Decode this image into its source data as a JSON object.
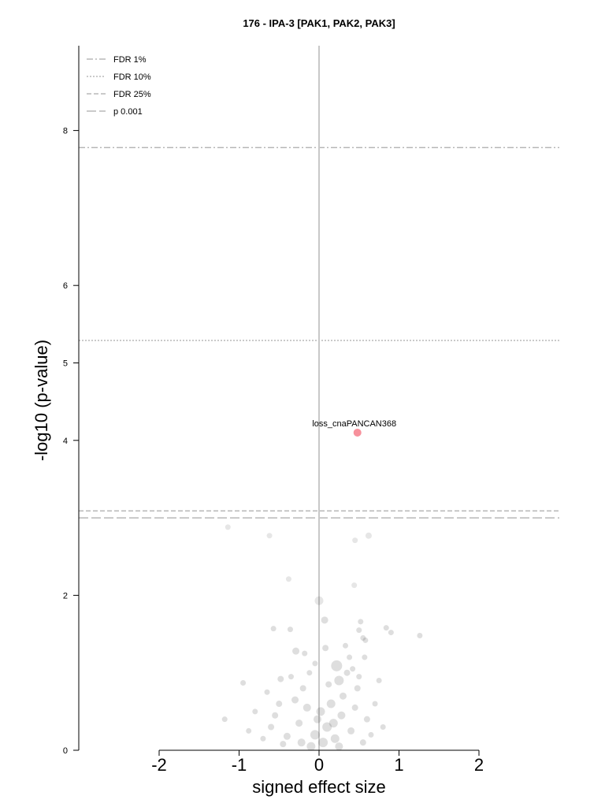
{
  "chart_data": {
    "type": "scatter",
    "title": "176 - IPA-3 [PAK1, PAK2, PAK3]",
    "xlabel": "signed effect size",
    "ylabel": "-log10 (p-value)",
    "x_ticks": [
      "-2",
      "-1",
      "0",
      "1",
      "2"
    ],
    "x_tick_values": [
      -2,
      -1,
      0,
      1,
      2
    ],
    "y_ticks": [
      "0",
      "2",
      "4",
      "5",
      "6",
      "8"
    ],
    "y_tick_values": [
      0,
      2,
      4,
      5,
      6,
      8
    ],
    "xlim": [
      -3.0,
      3.0
    ],
    "ylim": [
      0,
      9.0
    ],
    "grid": false,
    "legend_position": "top-left",
    "thresholds": [
      {
        "name": "FDR 1%",
        "y": 7.78,
        "style": "dashdot"
      },
      {
        "name": "FDR 10%",
        "y": 5.29,
        "style": "dotted"
      },
      {
        "name": "FDR 25%",
        "y": 3.09,
        "style": "dashed"
      },
      {
        "name": "p 0.001",
        "y": 3.0,
        "style": "longdash"
      }
    ],
    "highlight": {
      "label": "loss_cnaPANCAN368",
      "x": 0.48,
      "y": 4.1,
      "color": "#f7919c"
    },
    "colors": {
      "points": "#333333",
      "highlight": "#f7919c",
      "zero_line": "#c8c8c8",
      "threshold": "#aaaaaa"
    },
    "points": [
      [
        -1.14,
        2.88,
        5
      ],
      [
        -0.62,
        2.77,
        5
      ],
      [
        0.45,
        2.71,
        5
      ],
      [
        0.62,
        2.77,
        6
      ],
      [
        -0.38,
        2.21,
        5
      ],
      [
        0.44,
        2.13,
        5
      ],
      [
        0.0,
        1.93,
        9
      ],
      [
        0.07,
        1.68,
        7
      ],
      [
        0.52,
        1.66,
        5
      ],
      [
        0.84,
        1.58,
        5
      ],
      [
        0.9,
        1.52,
        5
      ],
      [
        1.26,
        1.48,
        5
      ],
      [
        -0.57,
        1.57,
        5
      ],
      [
        -0.36,
        1.56,
        5
      ],
      [
        0.08,
        1.32,
        6
      ],
      [
        -0.29,
        1.28,
        7
      ],
      [
        0.22,
        1.09,
        12
      ],
      [
        0.25,
        0.9,
        10
      ],
      [
        -0.95,
        0.87,
        5
      ],
      [
        -1.18,
        0.4,
        5
      ],
      [
        -0.88,
        0.25,
        5
      ],
      [
        0.75,
        0.9,
        5
      ],
      [
        0.55,
        1.45,
        5
      ],
      [
        0.5,
        1.55,
        5
      ],
      [
        0.58,
        1.42,
        5
      ],
      [
        -0.05,
        1.12,
        5
      ],
      [
        0.35,
        1.0,
        6
      ],
      [
        -0.48,
        0.92,
        6
      ],
      [
        0.15,
        0.6,
        9
      ],
      [
        -0.15,
        0.55,
        8
      ],
      [
        0.28,
        0.45,
        8
      ],
      [
        -0.25,
        0.35,
        7
      ],
      [
        0.1,
        0.3,
        10
      ],
      [
        -0.05,
        0.2,
        10
      ],
      [
        0.05,
        0.1,
        10
      ],
      [
        0.2,
        0.15,
        9
      ],
      [
        -0.1,
        0.05,
        9
      ],
      [
        0.4,
        0.25,
        7
      ],
      [
        -0.4,
        0.18,
        7
      ],
      [
        0.6,
        0.4,
        6
      ],
      [
        -0.6,
        0.3,
        6
      ],
      [
        0.3,
        0.7,
        7
      ],
      [
        -0.3,
        0.65,
        7
      ],
      [
        0.45,
        0.55,
        6
      ],
      [
        -0.5,
        0.6,
        6
      ],
      [
        0.65,
        0.2,
        5
      ],
      [
        -0.7,
        0.15,
        5
      ],
      [
        0.12,
        0.85,
        6
      ],
      [
        -0.2,
        0.8,
        6
      ],
      [
        0.38,
        1.2,
        5
      ],
      [
        -0.12,
        1.0,
        5
      ],
      [
        0.48,
        0.8,
        6
      ],
      [
        -0.55,
        0.45,
        6
      ],
      [
        0.02,
        0.5,
        9
      ],
      [
        0.18,
        0.35,
        9
      ],
      [
        -0.02,
        0.4,
        8
      ],
      [
        0.25,
        0.05,
        8
      ],
      [
        -0.22,
        0.1,
        8
      ],
      [
        0.55,
        0.1,
        6
      ],
      [
        -0.45,
        0.08,
        6
      ],
      [
        0.7,
        0.6,
        5
      ],
      [
        -0.8,
        0.5,
        5
      ],
      [
        0.8,
        0.3,
        5
      ],
      [
        -0.65,
        0.75,
        5
      ],
      [
        0.33,
        1.35,
        5
      ],
      [
        0.42,
        1.05,
        5
      ],
      [
        -0.35,
        0.95,
        5
      ],
      [
        0.57,
        1.2,
        5
      ],
      [
        0.5,
        0.95,
        5
      ],
      [
        -0.18,
        1.25,
        5
      ]
    ]
  }
}
